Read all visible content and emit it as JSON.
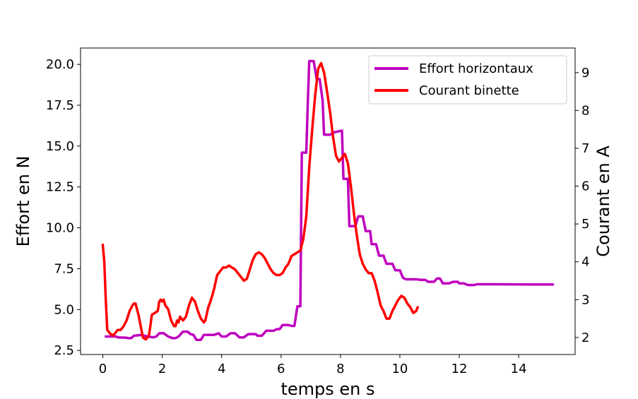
{
  "chart_data": {
    "type": "line",
    "xlabel": "temps en s",
    "ylabel_left": "Effort en N",
    "ylabel_right": "Courant en A",
    "xlim": [
      -0.75,
      15.9
    ],
    "ylim_left": [
      2.25,
      21.0
    ],
    "ylim_right": [
      1.55,
      9.65
    ],
    "x_ticks": [
      0,
      2,
      4,
      6,
      8,
      10,
      12,
      14
    ],
    "x_tick_labels": [
      "0",
      "2",
      "4",
      "6",
      "8",
      "10",
      "12",
      "14"
    ],
    "y_left_ticks": [
      2.5,
      5.0,
      7.5,
      10.0,
      12.5,
      15.0,
      17.5,
      20.0
    ],
    "y_left_tick_labels": [
      "2.5",
      "5.0",
      "7.5",
      "10.0",
      "12.5",
      "15.0",
      "17.5",
      "20.0"
    ],
    "y_right_ticks": [
      2,
      3,
      4,
      5,
      6,
      7,
      8,
      9
    ],
    "y_right_tick_labels": [
      "2",
      "3",
      "4",
      "5",
      "6",
      "7",
      "8",
      "9"
    ],
    "grid": false,
    "legend_position": "top-right",
    "series": [
      {
        "name": "Effort horizontaux",
        "axis": "left",
        "color": "#bf00bf",
        "points": [
          [
            0.1,
            3.35
          ],
          [
            0.45,
            3.35
          ],
          [
            0.5,
            3.3
          ],
          [
            0.8,
            3.28
          ],
          [
            0.85,
            3.25
          ],
          [
            0.95,
            3.25
          ],
          [
            1.05,
            3.4
          ],
          [
            1.3,
            3.45
          ],
          [
            1.5,
            3.35
          ],
          [
            1.7,
            3.3
          ],
          [
            1.8,
            3.35
          ],
          [
            1.9,
            3.55
          ],
          [
            2.05,
            3.55
          ],
          [
            2.2,
            3.35
          ],
          [
            2.35,
            3.25
          ],
          [
            2.45,
            3.25
          ],
          [
            2.55,
            3.35
          ],
          [
            2.7,
            3.65
          ],
          [
            2.85,
            3.65
          ],
          [
            2.95,
            3.5
          ],
          [
            3.05,
            3.45
          ],
          [
            3.15,
            3.15
          ],
          [
            3.3,
            3.15
          ],
          [
            3.4,
            3.45
          ],
          [
            3.75,
            3.45
          ],
          [
            3.9,
            3.55
          ],
          [
            4.0,
            3.35
          ],
          [
            4.15,
            3.35
          ],
          [
            4.3,
            3.55
          ],
          [
            4.45,
            3.55
          ],
          [
            4.6,
            3.3
          ],
          [
            4.75,
            3.3
          ],
          [
            4.9,
            3.5
          ],
          [
            5.15,
            3.5
          ],
          [
            5.2,
            3.4
          ],
          [
            5.35,
            3.4
          ],
          [
            5.5,
            3.7
          ],
          [
            5.75,
            3.7
          ],
          [
            5.85,
            3.8
          ],
          [
            5.95,
            3.8
          ],
          [
            6.05,
            4.05
          ],
          [
            6.25,
            4.05
          ],
          [
            6.35,
            4.0
          ],
          [
            6.45,
            4.0
          ],
          [
            6.55,
            5.2
          ],
          [
            6.65,
            5.2
          ],
          [
            6.7,
            14.6
          ],
          [
            6.85,
            14.6
          ],
          [
            6.9,
            17.6
          ],
          [
            6.95,
            20.2
          ],
          [
            7.1,
            20.2
          ],
          [
            7.2,
            19.1
          ],
          [
            7.3,
            19.1
          ],
          [
            7.4,
            17.8
          ],
          [
            7.45,
            15.7
          ],
          [
            7.65,
            15.7
          ],
          [
            7.8,
            15.85
          ],
          [
            8.05,
            15.95
          ],
          [
            8.1,
            13.0
          ],
          [
            8.25,
            13.0
          ],
          [
            8.3,
            10.1
          ],
          [
            8.5,
            10.1
          ],
          [
            8.6,
            10.7
          ],
          [
            8.75,
            10.7
          ],
          [
            8.85,
            9.8
          ],
          [
            9.0,
            9.8
          ],
          [
            9.05,
            9.0
          ],
          [
            9.2,
            9.0
          ],
          [
            9.3,
            8.3
          ],
          [
            9.45,
            8.3
          ],
          [
            9.55,
            7.8
          ],
          [
            9.75,
            7.8
          ],
          [
            9.85,
            7.4
          ],
          [
            10.0,
            7.4
          ],
          [
            10.1,
            6.95
          ],
          [
            10.2,
            6.85
          ],
          [
            10.35,
            6.85
          ],
          [
            10.55,
            6.85
          ],
          [
            10.7,
            6.82
          ],
          [
            10.85,
            6.82
          ],
          [
            10.95,
            6.7
          ],
          [
            11.15,
            6.7
          ],
          [
            11.25,
            6.9
          ],
          [
            11.35,
            6.9
          ],
          [
            11.45,
            6.6
          ],
          [
            11.65,
            6.6
          ],
          [
            11.8,
            6.7
          ],
          [
            11.95,
            6.7
          ],
          [
            12.0,
            6.6
          ],
          [
            12.15,
            6.6
          ],
          [
            12.3,
            6.5
          ],
          [
            12.5,
            6.5
          ],
          [
            12.6,
            6.55
          ],
          [
            13.0,
            6.55
          ],
          [
            15.15,
            6.53
          ]
        ]
      },
      {
        "name": "Courant binette",
        "axis": "right",
        "color": "#ff0000",
        "points": [
          [
            0.0,
            4.45
          ],
          [
            0.05,
            4.0
          ],
          [
            0.1,
            3.0
          ],
          [
            0.15,
            2.2
          ],
          [
            0.25,
            2.1
          ],
          [
            0.35,
            2.05
          ],
          [
            0.4,
            2.1
          ],
          [
            0.5,
            2.2
          ],
          [
            0.6,
            2.2
          ],
          [
            0.7,
            2.3
          ],
          [
            0.8,
            2.45
          ],
          [
            0.9,
            2.7
          ],
          [
            1.0,
            2.85
          ],
          [
            1.05,
            2.9
          ],
          [
            1.1,
            2.9
          ],
          [
            1.2,
            2.6
          ],
          [
            1.3,
            2.2
          ],
          [
            1.35,
            2.0
          ],
          [
            1.45,
            1.95
          ],
          [
            1.55,
            2.05
          ],
          [
            1.6,
            2.3
          ],
          [
            1.65,
            2.6
          ],
          [
            1.75,
            2.65
          ],
          [
            1.85,
            2.7
          ],
          [
            1.9,
            2.95
          ],
          [
            1.95,
            3.0
          ],
          [
            2.0,
            2.95
          ],
          [
            2.05,
            3.0
          ],
          [
            2.1,
            2.85
          ],
          [
            2.2,
            2.75
          ],
          [
            2.3,
            2.45
          ],
          [
            2.4,
            2.3
          ],
          [
            2.45,
            2.3
          ],
          [
            2.5,
            2.45
          ],
          [
            2.55,
            2.4
          ],
          [
            2.6,
            2.55
          ],
          [
            2.7,
            2.45
          ],
          [
            2.8,
            2.55
          ],
          [
            2.9,
            2.85
          ],
          [
            3.0,
            3.05
          ],
          [
            3.1,
            2.95
          ],
          [
            3.2,
            2.7
          ],
          [
            3.3,
            2.5
          ],
          [
            3.4,
            2.4
          ],
          [
            3.45,
            2.45
          ],
          [
            3.55,
            2.8
          ],
          [
            3.6,
            2.9
          ],
          [
            3.7,
            3.15
          ],
          [
            3.75,
            3.3
          ],
          [
            3.85,
            3.65
          ],
          [
            3.95,
            3.75
          ],
          [
            4.05,
            3.85
          ],
          [
            4.15,
            3.85
          ],
          [
            4.25,
            3.9
          ],
          [
            4.35,
            3.85
          ],
          [
            4.45,
            3.8
          ],
          [
            4.55,
            3.7
          ],
          [
            4.65,
            3.6
          ],
          [
            4.75,
            3.5
          ],
          [
            4.85,
            3.55
          ],
          [
            4.95,
            3.8
          ],
          [
            5.05,
            4.05
          ],
          [
            5.15,
            4.2
          ],
          [
            5.25,
            4.25
          ],
          [
            5.35,
            4.2
          ],
          [
            5.45,
            4.1
          ],
          [
            5.55,
            3.95
          ],
          [
            5.65,
            3.8
          ],
          [
            5.75,
            3.7
          ],
          [
            5.85,
            3.65
          ],
          [
            5.95,
            3.65
          ],
          [
            6.05,
            3.7
          ],
          [
            6.15,
            3.85
          ],
          [
            6.25,
            3.95
          ],
          [
            6.35,
            4.15
          ],
          [
            6.45,
            4.2
          ],
          [
            6.55,
            4.25
          ],
          [
            6.65,
            4.3
          ],
          [
            6.75,
            4.6
          ],
          [
            6.85,
            5.2
          ],
          [
            6.95,
            6.5
          ],
          [
            7.05,
            7.5
          ],
          [
            7.15,
            8.4
          ],
          [
            7.25,
            9.1
          ],
          [
            7.35,
            9.25
          ],
          [
            7.45,
            9.0
          ],
          [
            7.55,
            8.5
          ],
          [
            7.65,
            7.95
          ],
          [
            7.75,
            7.3
          ],
          [
            7.85,
            6.8
          ],
          [
            7.95,
            6.65
          ],
          [
            8.05,
            6.75
          ],
          [
            8.15,
            6.85
          ],
          [
            8.25,
            6.6
          ],
          [
            8.35,
            6.0
          ],
          [
            8.45,
            5.3
          ],
          [
            8.55,
            4.7
          ],
          [
            8.65,
            4.2
          ],
          [
            8.75,
            3.95
          ],
          [
            8.85,
            3.8
          ],
          [
            8.95,
            3.7
          ],
          [
            9.05,
            3.7
          ],
          [
            9.15,
            3.5
          ],
          [
            9.25,
            3.2
          ],
          [
            9.35,
            2.85
          ],
          [
            9.45,
            2.7
          ],
          [
            9.55,
            2.5
          ],
          [
            9.65,
            2.5
          ],
          [
            9.75,
            2.7
          ],
          [
            9.85,
            2.85
          ],
          [
            9.95,
            3.0
          ],
          [
            10.05,
            3.1
          ],
          [
            10.15,
            3.05
          ],
          [
            10.25,
            2.9
          ],
          [
            10.35,
            2.8
          ],
          [
            10.45,
            2.65
          ],
          [
            10.55,
            2.7
          ],
          [
            10.6,
            2.8
          ]
        ]
      }
    ]
  }
}
